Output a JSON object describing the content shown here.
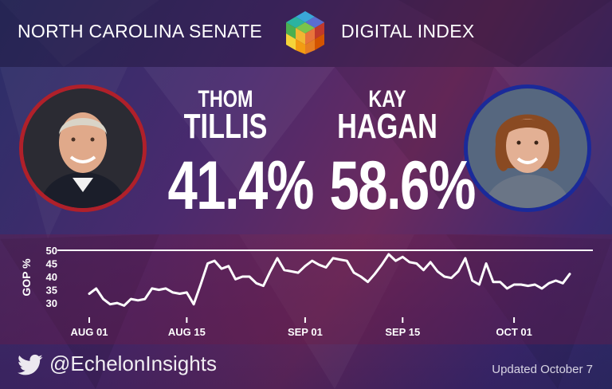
{
  "header": {
    "title_left": "NORTH CAROLINA SENATE",
    "title_right": "DIGITAL INDEX",
    "logo_icon": "cube-logo-icon"
  },
  "candidates": [
    {
      "first": "THOM",
      "last": "TILLIS",
      "percent": "41.4%",
      "party_color": "#b0202a"
    },
    {
      "first": "KAY",
      "last": "HAGAN",
      "percent": "58.6%",
      "party_color": "#1a2a9a"
    }
  ],
  "chart_data": {
    "type": "line",
    "ylabel": "GOP %",
    "xlabel": "",
    "ylim": [
      27,
      50
    ],
    "yticks": [
      30,
      35,
      40,
      45,
      50
    ],
    "xticks": [
      {
        "label": "AUG 01",
        "day": 0
      },
      {
        "label": "AUG 15",
        "day": 14
      },
      {
        "label": "SEP 01",
        "day": 31
      },
      {
        "label": "SEP 15",
        "day": 45
      },
      {
        "label": "OCT 01",
        "day": 61
      }
    ],
    "grid": false,
    "line_color": "#ffffff",
    "series": [
      {
        "values": [
          33.5,
          35.5,
          31.5,
          29.5,
          30,
          29,
          31.5,
          31,
          31.5,
          35.5,
          35,
          35.5,
          34,
          33.5,
          34,
          29.5,
          37,
          45,
          46,
          43,
          44,
          39,
          40,
          40,
          37.5,
          36.5,
          42,
          47,
          42.5,
          42,
          41.5,
          44,
          46,
          44.5,
          43.5,
          47,
          46.5,
          46,
          41.5,
          40,
          38,
          41,
          44.5,
          48.5,
          46,
          47.5,
          45.5,
          45,
          42.5,
          45.5,
          42,
          40,
          39.5,
          42,
          47,
          38.5,
          37,
          45,
          38,
          38,
          35.5,
          37,
          37,
          36.5,
          37,
          35.5,
          37.5,
          38.5,
          37.5,
          41
        ]
      }
    ]
  },
  "footer": {
    "handle": "@EchelonInsights",
    "updated": "Updated October 7",
    "twitter_icon": "twitter-bird-icon"
  }
}
